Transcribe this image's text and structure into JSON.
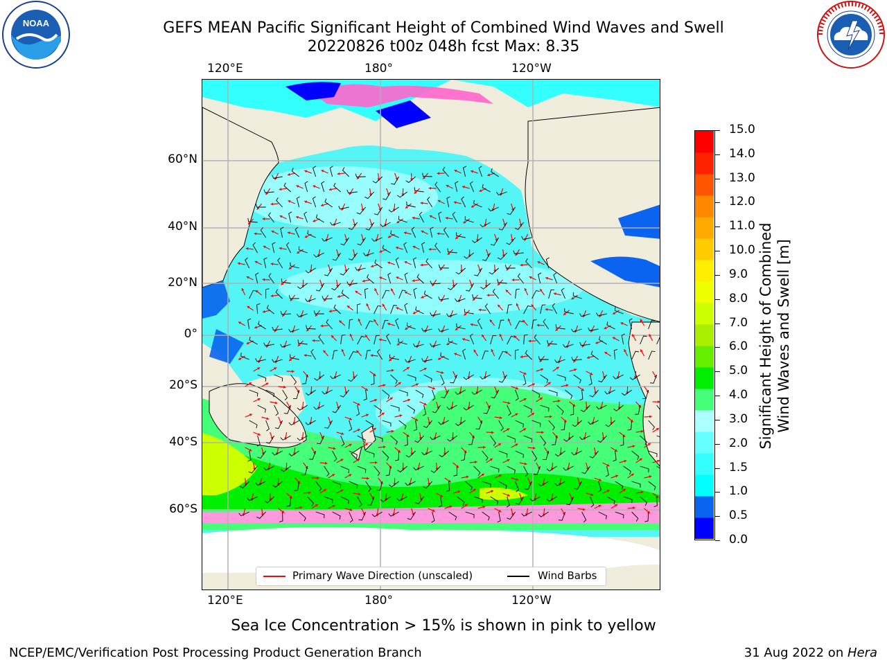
{
  "header": {
    "title_line1": "GEFS MEAN Pacific Significant Height of Combined Wind Waves and Swell",
    "title_line2": "20220826 t00z 048h fcst   Max: 8.35"
  },
  "logos": {
    "noaa_text": "NOAA",
    "noaa_ring_text": "NATIONAL OCEANIC AND ATMOSPHERIC ADMINISTRATION · U.S. DEPARTMENT OF COMMERCE",
    "nws_ring_text": "NATIONAL WEATHER SERVICE"
  },
  "map": {
    "lon_labels": [
      "120°E",
      "180°",
      "120°W"
    ],
    "lat_labels": [
      "60°N",
      "40°N",
      "20°N",
      "0°",
      "20°S",
      "40°S",
      "60°S"
    ],
    "legend": {
      "wave_label": "Primary Wave Direction (unscaled)",
      "barb_label": "Wind Barbs"
    },
    "colors": {
      "land": "#efecdc",
      "ice_white": "#ffffff",
      "wave_arrow": "#ff0000",
      "barb": "#000000",
      "grid": "#b0b0b0"
    }
  },
  "colorbar": {
    "title_line1": "Significant Height of Combined",
    "title_line2": "Wind Waves and Swell [m]",
    "ticks": [
      "0.0",
      "0.5",
      "1.0",
      "1.5",
      "2.0",
      "3.0",
      "4.0",
      "5.0",
      "6.0",
      "7.0",
      "8.0",
      "9.0",
      "10.0",
      "11.0",
      "12.0",
      "13.0",
      "14.0",
      "15.0"
    ],
    "colors": [
      "#0000ff",
      "#0a64f0",
      "#00ffff",
      "#33ffff",
      "#66ffff",
      "#aaffff",
      "#44ff77",
      "#00ee00",
      "#66ee00",
      "#aaee00",
      "#ccff00",
      "#eeff00",
      "#ffee00",
      "#ffcc00",
      "#ffaa00",
      "#ff8800",
      "#ff5500",
      "#ff2200",
      "#ff0000"
    ]
  },
  "footer": {
    "ice_note": "Sea Ice Concentration > 15% is shown in pink to yellow",
    "left": "NCEP/EMC/Verification Post Processing Product Generation Branch",
    "right_date": "31 Aug 2022 on ",
    "right_host": "Hera"
  }
}
